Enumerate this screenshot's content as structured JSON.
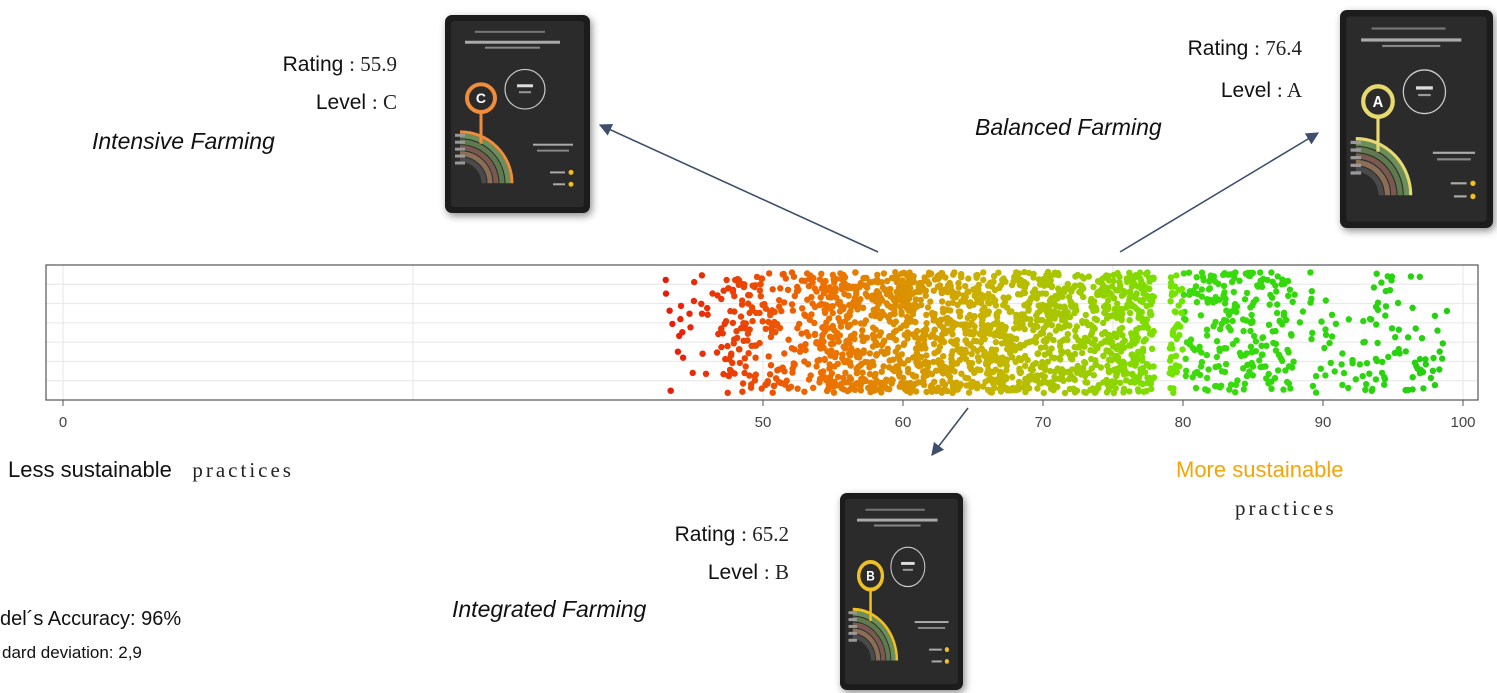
{
  "chart_data": {
    "type": "scatter",
    "title": "",
    "xlabel": "",
    "ylabel": "",
    "xlim": [
      0,
      100
    ],
    "x_ticks": [
      "0",
      "50",
      "60",
      "70",
      "80",
      "90",
      "100"
    ],
    "grid": true,
    "color_scale": {
      "low": "#e8190a",
      "mid": "#c8b400",
      "high": "#22d010"
    },
    "point_count": 2200,
    "distribution": "jittered strip of sustainability ratings, densest between 54 and 78, sparse tails from 43 to 99"
  },
  "scale_labels": {
    "left_bold": "Less sustainable",
    "left_rest": "practices",
    "right_bold": "More sustainable",
    "right_rest": "practices",
    "right_color": "#f5a40a"
  },
  "examples": [
    {
      "id": "c",
      "rating_label": "Rating",
      "rating_value": ": 55.9",
      "level_label": "Level",
      "level_value": ": C",
      "category": "Intensive Farming",
      "badge": "C",
      "badge_color": "#f08c3a",
      "score": 55.9
    },
    {
      "id": "a",
      "rating_label": "Rating",
      "rating_value": ": 76.4",
      "level_label": "Level",
      "level_value": ": A",
      "category": "Balanced Farming",
      "badge": "A",
      "badge_color": "#e8d870",
      "score": 76.4
    },
    {
      "id": "b",
      "rating_label": "Rating",
      "rating_value": ": 65.2",
      "level_label": "Level",
      "level_value": ": B",
      "category": "Integrated Farming",
      "badge": "B",
      "badge_color": "#f0c020",
      "score": 65.2
    }
  ],
  "model": {
    "accuracy": "del´s Accuracy: 96%",
    "std": "dard deviation: 2,9"
  },
  "colors": {
    "arrow": "#3d4f6a",
    "plot_border": "#555555",
    "grid": "#e6e6e6"
  }
}
